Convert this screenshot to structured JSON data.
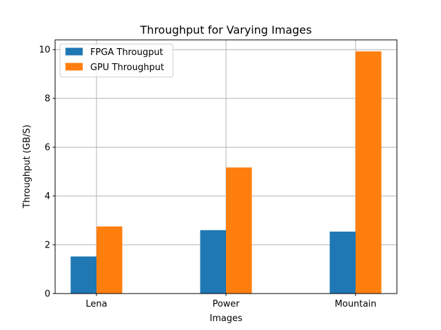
{
  "chart_data": {
    "type": "bar",
    "title": "Throughput for Varying Images",
    "xlabel": "Images",
    "ylabel": "Throughput (GB/S)",
    "categories": [
      "Lena",
      "Power",
      "Mountain"
    ],
    "series": [
      {
        "name": "FPGA Througput",
        "color": "#1f77b4",
        "values": [
          1.52,
          2.6,
          2.54
        ]
      },
      {
        "name": "GPU Throughput",
        "color": "#ff7f0e",
        "values": [
          2.75,
          5.17,
          9.93
        ]
      }
    ],
    "ylim": [
      0,
      10.4
    ],
    "yticks": [
      0,
      2,
      4,
      6,
      8,
      10
    ],
    "grid": true,
    "legend_position": "top-left"
  }
}
